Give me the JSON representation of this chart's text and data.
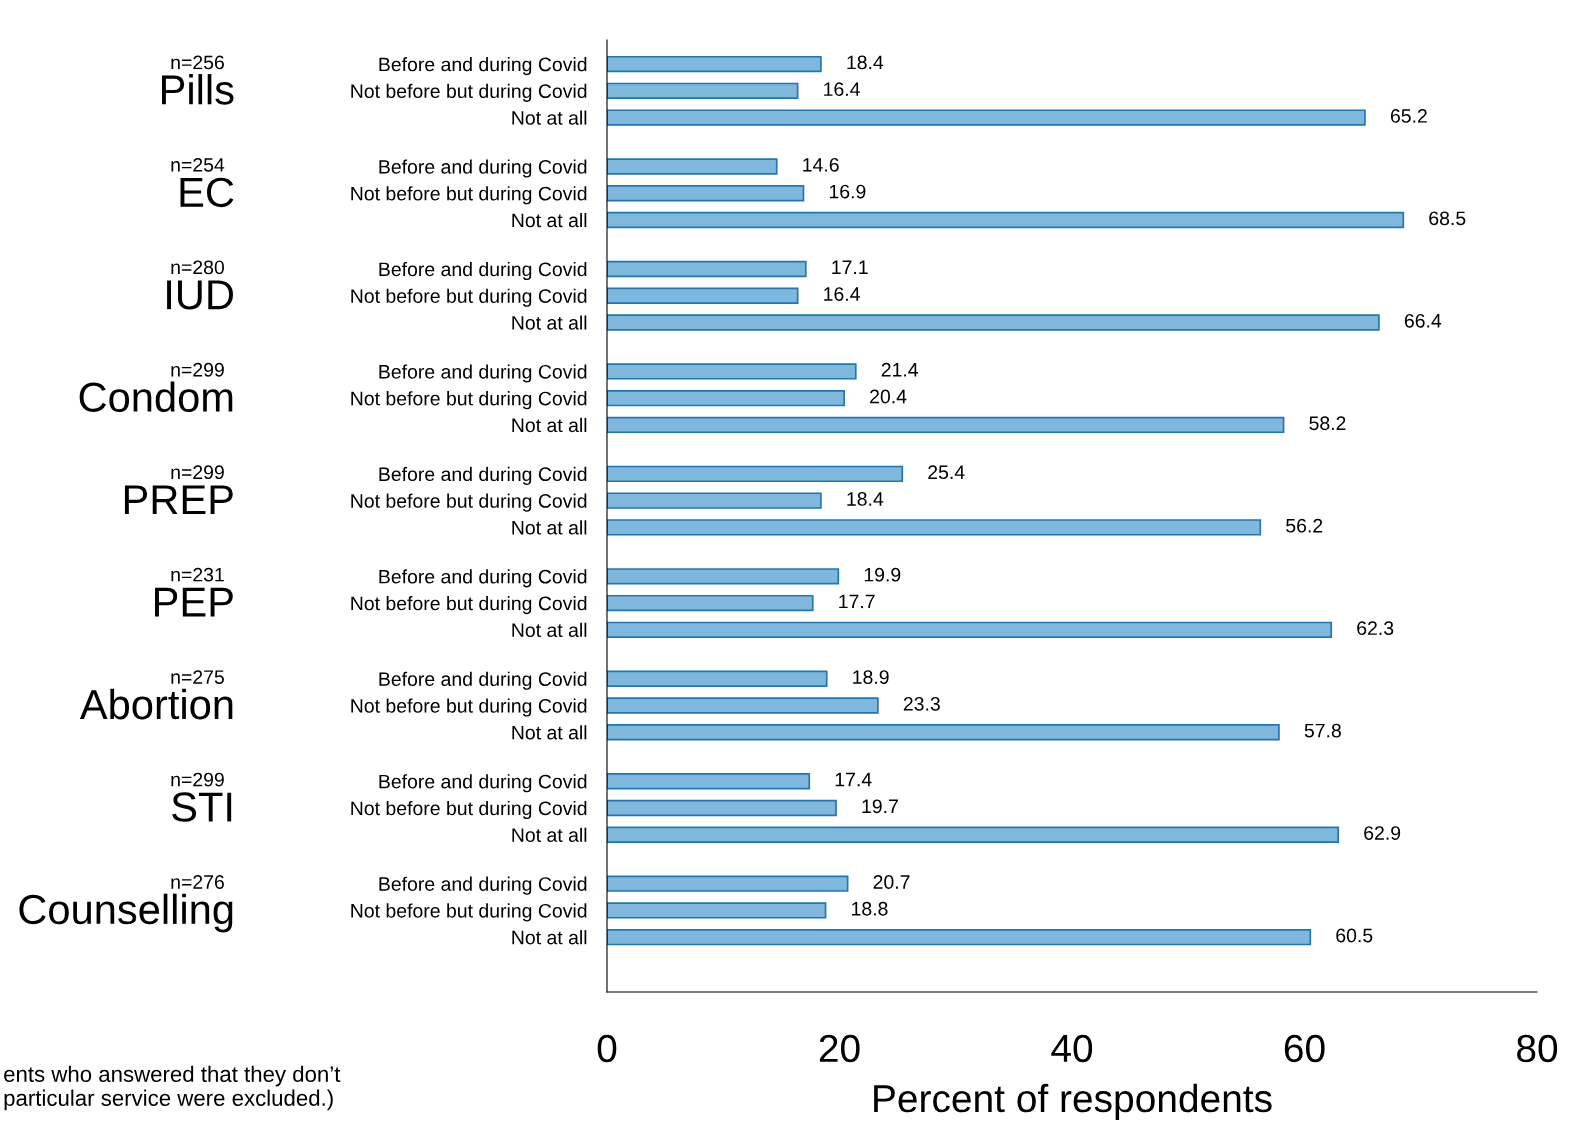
{
  "chart_data": {
    "type": "bar",
    "orientation": "horizontal",
    "xlabel": "Percent of respondents",
    "categories": [
      "Before and during Covid",
      "Not before but during Covid",
      "Not at all",
      "Before and during Covid",
      "Not before but during Covid",
      "Not at all",
      "Before and during Covid",
      "Not before but during Covid",
      "Not at all",
      "Before and during Covid",
      "Not before but during Covid",
      "Not at all",
      "Before and during Covid",
      "Not before but during Covid",
      "Not at all",
      "Before and during Covid",
      "Not before but during Covid",
      "Not at all",
      "Before and during Covid",
      "Not before but during Covid",
      "Not at all",
      "Before and during Covid",
      "Not before but during Covid",
      "Not at all",
      "Before and during Covid",
      "Not before but during Covid",
      "Not at all"
    ],
    "values": [
      18.4,
      16.4,
      65.2,
      14.6,
      16.9,
      68.5,
      17.1,
      16.4,
      66.4,
      21.4,
      20.4,
      58.2,
      25.4,
      18.4,
      56.2,
      19.9,
      17.7,
      62.3,
      18.9,
      23.3,
      57.8,
      17.4,
      19.7,
      62.9,
      20.7,
      18.8,
      60.5
    ],
    "color": "#7fb8dc",
    "data_labels": true,
    "xlim": [
      0,
      80
    ],
    "xticks": [
      0,
      20,
      40,
      60,
      80
    ],
    "grid": false,
    "legend": false,
    "annotations": [
      "n=256",
      "Pills",
      "n=254",
      "EC",
      "n=280",
      "IUD",
      "n=299",
      "Condom",
      "n=299",
      "PREP",
      "n=231",
      "PEP",
      "n=275",
      "Abortion",
      "n=299",
      "STI",
      "n=276",
      "Counselling",
      "ents who answered that they don’t\nparticular service were excluded.)"
    ]
  }
}
